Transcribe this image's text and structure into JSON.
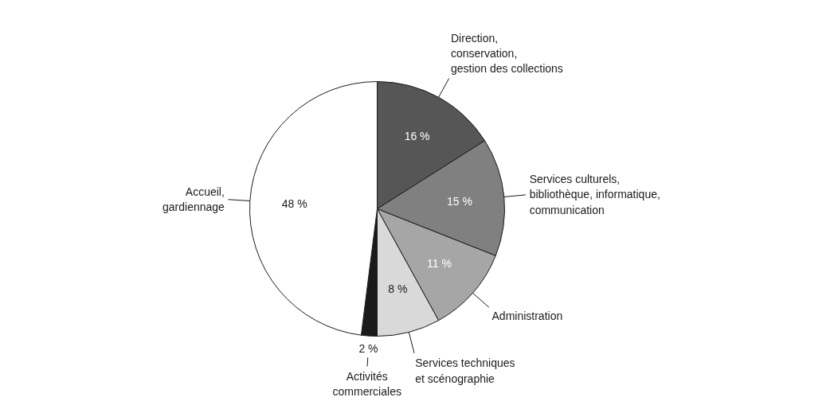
{
  "chart_data": {
    "type": "pie",
    "categories": [
      "Direction,\nconservation,\ngestion des collections",
      "Services culturels,\nbibliothèque, informatique,\ncommunication",
      "Administration",
      "Services techniques\net scénographie",
      "Activités\ncommerciales",
      "Accueil,\ngardiennage"
    ],
    "values": [
      16,
      15,
      11,
      8,
      2,
      48
    ],
    "colors": [
      "#565656",
      "#808080",
      "#a6a6a6",
      "#d9d9d9",
      "#1a1a1a",
      "#ffffff"
    ],
    "value_labels": [
      "16 %",
      "15 %",
      "11 %",
      "8 %",
      "2 %",
      "48 %"
    ]
  }
}
